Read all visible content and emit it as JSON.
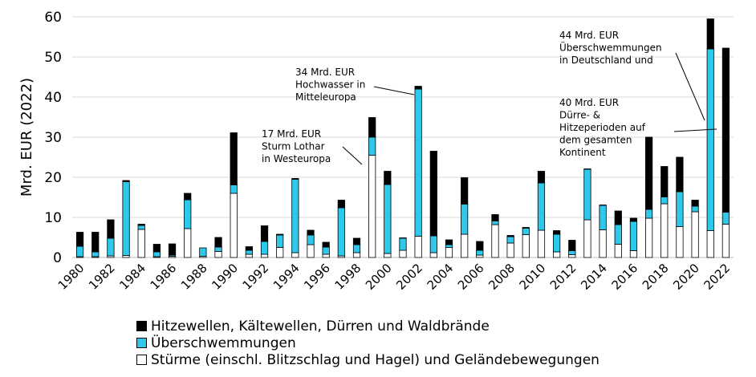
{
  "colors": {
    "storms": "#ffffff",
    "floods": "#2ec8ea",
    "heat": "#000000",
    "outline": "#000000"
  },
  "chart_data": {
    "type": "bar",
    "stacked": true,
    "ylabel": "Mrd. EUR (2022)",
    "ylim": [
      0,
      60
    ],
    "yticks": [
      0,
      10,
      20,
      30,
      40,
      50,
      60
    ],
    "grid": "horizontal",
    "legend_position": "bottom",
    "x": [
      1980,
      1981,
      1982,
      1983,
      1984,
      1985,
      1986,
      1987,
      1988,
      1989,
      1990,
      1991,
      1992,
      1993,
      1994,
      1995,
      1996,
      1997,
      1998,
      1999,
      2000,
      2001,
      2002,
      2003,
      2004,
      2005,
      2006,
      2007,
      2008,
      2009,
      2010,
      2011,
      2012,
      2013,
      2014,
      2015,
      2016,
      2017,
      2018,
      2019,
      2020,
      2021,
      2022
    ],
    "x_tick_labels": [
      "1980",
      "1982",
      "1984",
      "1986",
      "1988",
      "1990",
      "1992",
      "1994",
      "1996",
      "1998",
      "2000",
      "2002",
      "2004",
      "2006",
      "2008",
      "2010",
      "2012",
      "2014",
      "2016",
      "2018",
      "2020",
      "2022"
    ],
    "series": [
      {
        "name": "Stürme (einschl. Blitzschlag und Hagel) und Geländebewegungen",
        "color_key": "storms",
        "values": [
          0.2,
          0.2,
          0.4,
          0.5,
          7.0,
          0.2,
          0.3,
          7.2,
          0.3,
          1.5,
          16.0,
          0.8,
          0.8,
          2.5,
          1.2,
          3.2,
          0.8,
          0.4,
          1.2,
          25.5,
          1.0,
          1.8,
          5.3,
          1.2,
          2.5,
          5.8,
          0.6,
          8.2,
          3.6,
          5.7,
          6.8,
          1.4,
          0.7,
          9.4,
          6.9,
          3.3,
          1.7,
          9.8,
          13.4,
          7.7,
          11.4,
          6.7,
          8.3
        ]
      },
      {
        "name": "Überschwemmungen",
        "color_key": "floods",
        "values": [
          2.6,
          1.2,
          4.4,
          18.4,
          1.0,
          1.2,
          0.3,
          7.2,
          2.1,
          1.1,
          2.1,
          1.0,
          3.2,
          3.1,
          18.3,
          2.4,
          1.8,
          12.0,
          2.0,
          4.5,
          17.2,
          3.0,
          36.7,
          4.2,
          0.7,
          7.5,
          1.2,
          0.9,
          1.6,
          1.6,
          11.8,
          4.4,
          1.0,
          12.6,
          6.1,
          4.9,
          7.3,
          2.2,
          1.7,
          8.7,
          1.4,
          45.3,
          3.0
        ]
      },
      {
        "name": "Hitzewellen, Kältewellen, Dürren und Waldbrände",
        "color_key": "heat",
        "values": [
          3.5,
          4.9,
          4.6,
          0.3,
          0.3,
          1.9,
          2.8,
          1.6,
          0,
          2.4,
          13.0,
          0.9,
          3.9,
          0.2,
          0.2,
          1.2,
          1.2,
          1.9,
          1.6,
          4.9,
          3.3,
          0.1,
          0.7,
          21.1,
          1.2,
          6.6,
          2.2,
          1.6,
          0.3,
          0.2,
          2.9,
          0.9,
          2.6,
          0.1,
          0.1,
          3.4,
          0.8,
          18.0,
          7.6,
          8.6,
          1.5,
          7.5,
          40.9
        ]
      }
    ],
    "annotations": [
      {
        "lines": [
          "17 Mrd. EUR",
          "Sturm Lothar",
          "in Westeuropa"
        ],
        "year": 1999
      },
      {
        "lines": [
          "34 Mrd. EUR",
          "Hochwasser in",
          "Mitteleuropa"
        ],
        "year": 2002
      },
      {
        "lines": [
          "44 Mrd. EUR",
          "Überschwemmungen",
          "in Deutschland und"
        ],
        "year": 2021
      },
      {
        "lines": [
          "40 Mrd. EUR",
          "Dürre- &",
          "Hitzeperioden auf",
          "dem gesamten",
          "Kontinent"
        ],
        "year": 2022
      }
    ]
  },
  "legend": {
    "items": [
      "Hitzewellen, Kältewellen, Dürren und Waldbrände",
      "Überschwemmungen",
      "Stürme (einschl. Blitzschlag und Hagel) und Geländebewegungen"
    ]
  }
}
